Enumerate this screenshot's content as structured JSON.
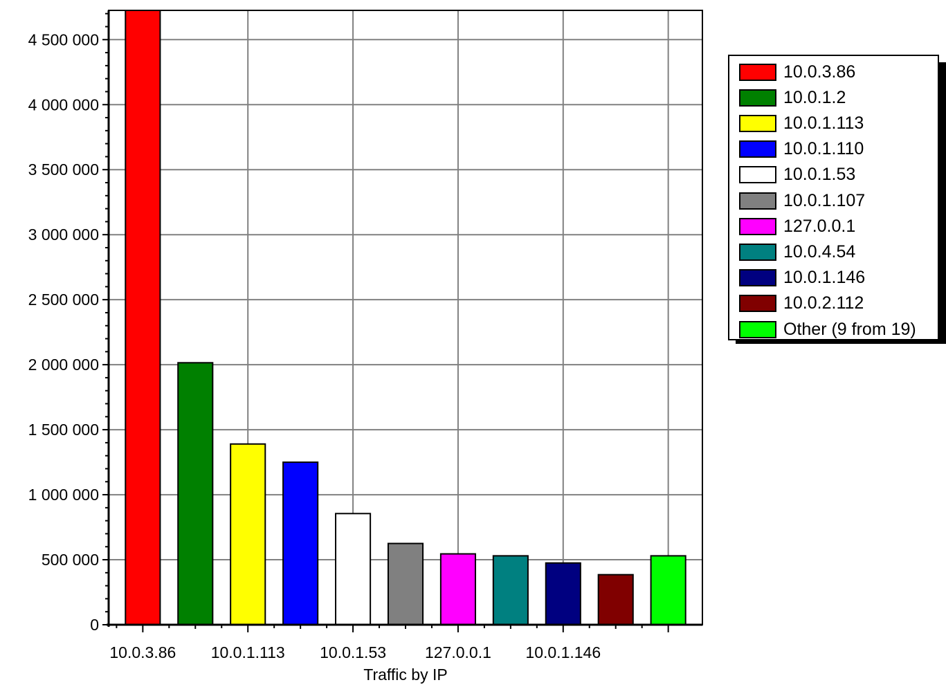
{
  "chart_data": {
    "type": "bar",
    "xlabel": "Traffic by IP",
    "ylabel": "",
    "ylim": [
      0,
      4725000
    ],
    "y_ticks": [
      0,
      500000,
      1000000,
      1500000,
      2000000,
      2500000,
      3000000,
      3500000,
      4000000,
      4500000
    ],
    "y_tick_labels": [
      "0",
      "500 000",
      "1 000 000",
      "1 500 000",
      "2 000 000",
      "2 500 000",
      "3 000 000",
      "3 500 000",
      "4 000 000",
      "4 500 000"
    ],
    "x_tick_labels": [
      "10.0.3.86",
      "10.0.1.113",
      "10.0.1.53",
      "127.0.0.1",
      "10.0.1.146"
    ],
    "grid": true,
    "legend_position": "right",
    "categories": [
      "10.0.3.86",
      "10.0.1.2",
      "10.0.1.113",
      "10.0.1.110",
      "10.0.1.53",
      "10.0.1.107",
      "127.0.0.1",
      "10.0.4.54",
      "10.0.1.146",
      "10.0.2.112",
      "Other (9 from 19)"
    ],
    "values": [
      4725000,
      2015000,
      1390000,
      1250000,
      855000,
      625000,
      545000,
      530000,
      475000,
      385000,
      530000
    ],
    "colors": [
      "#ff0000",
      "#008000",
      "#ffff00",
      "#0000ff",
      "#ffffff",
      "#808080",
      "#ff00ff",
      "#008080",
      "#000080",
      "#800000",
      "#00ff00"
    ]
  }
}
